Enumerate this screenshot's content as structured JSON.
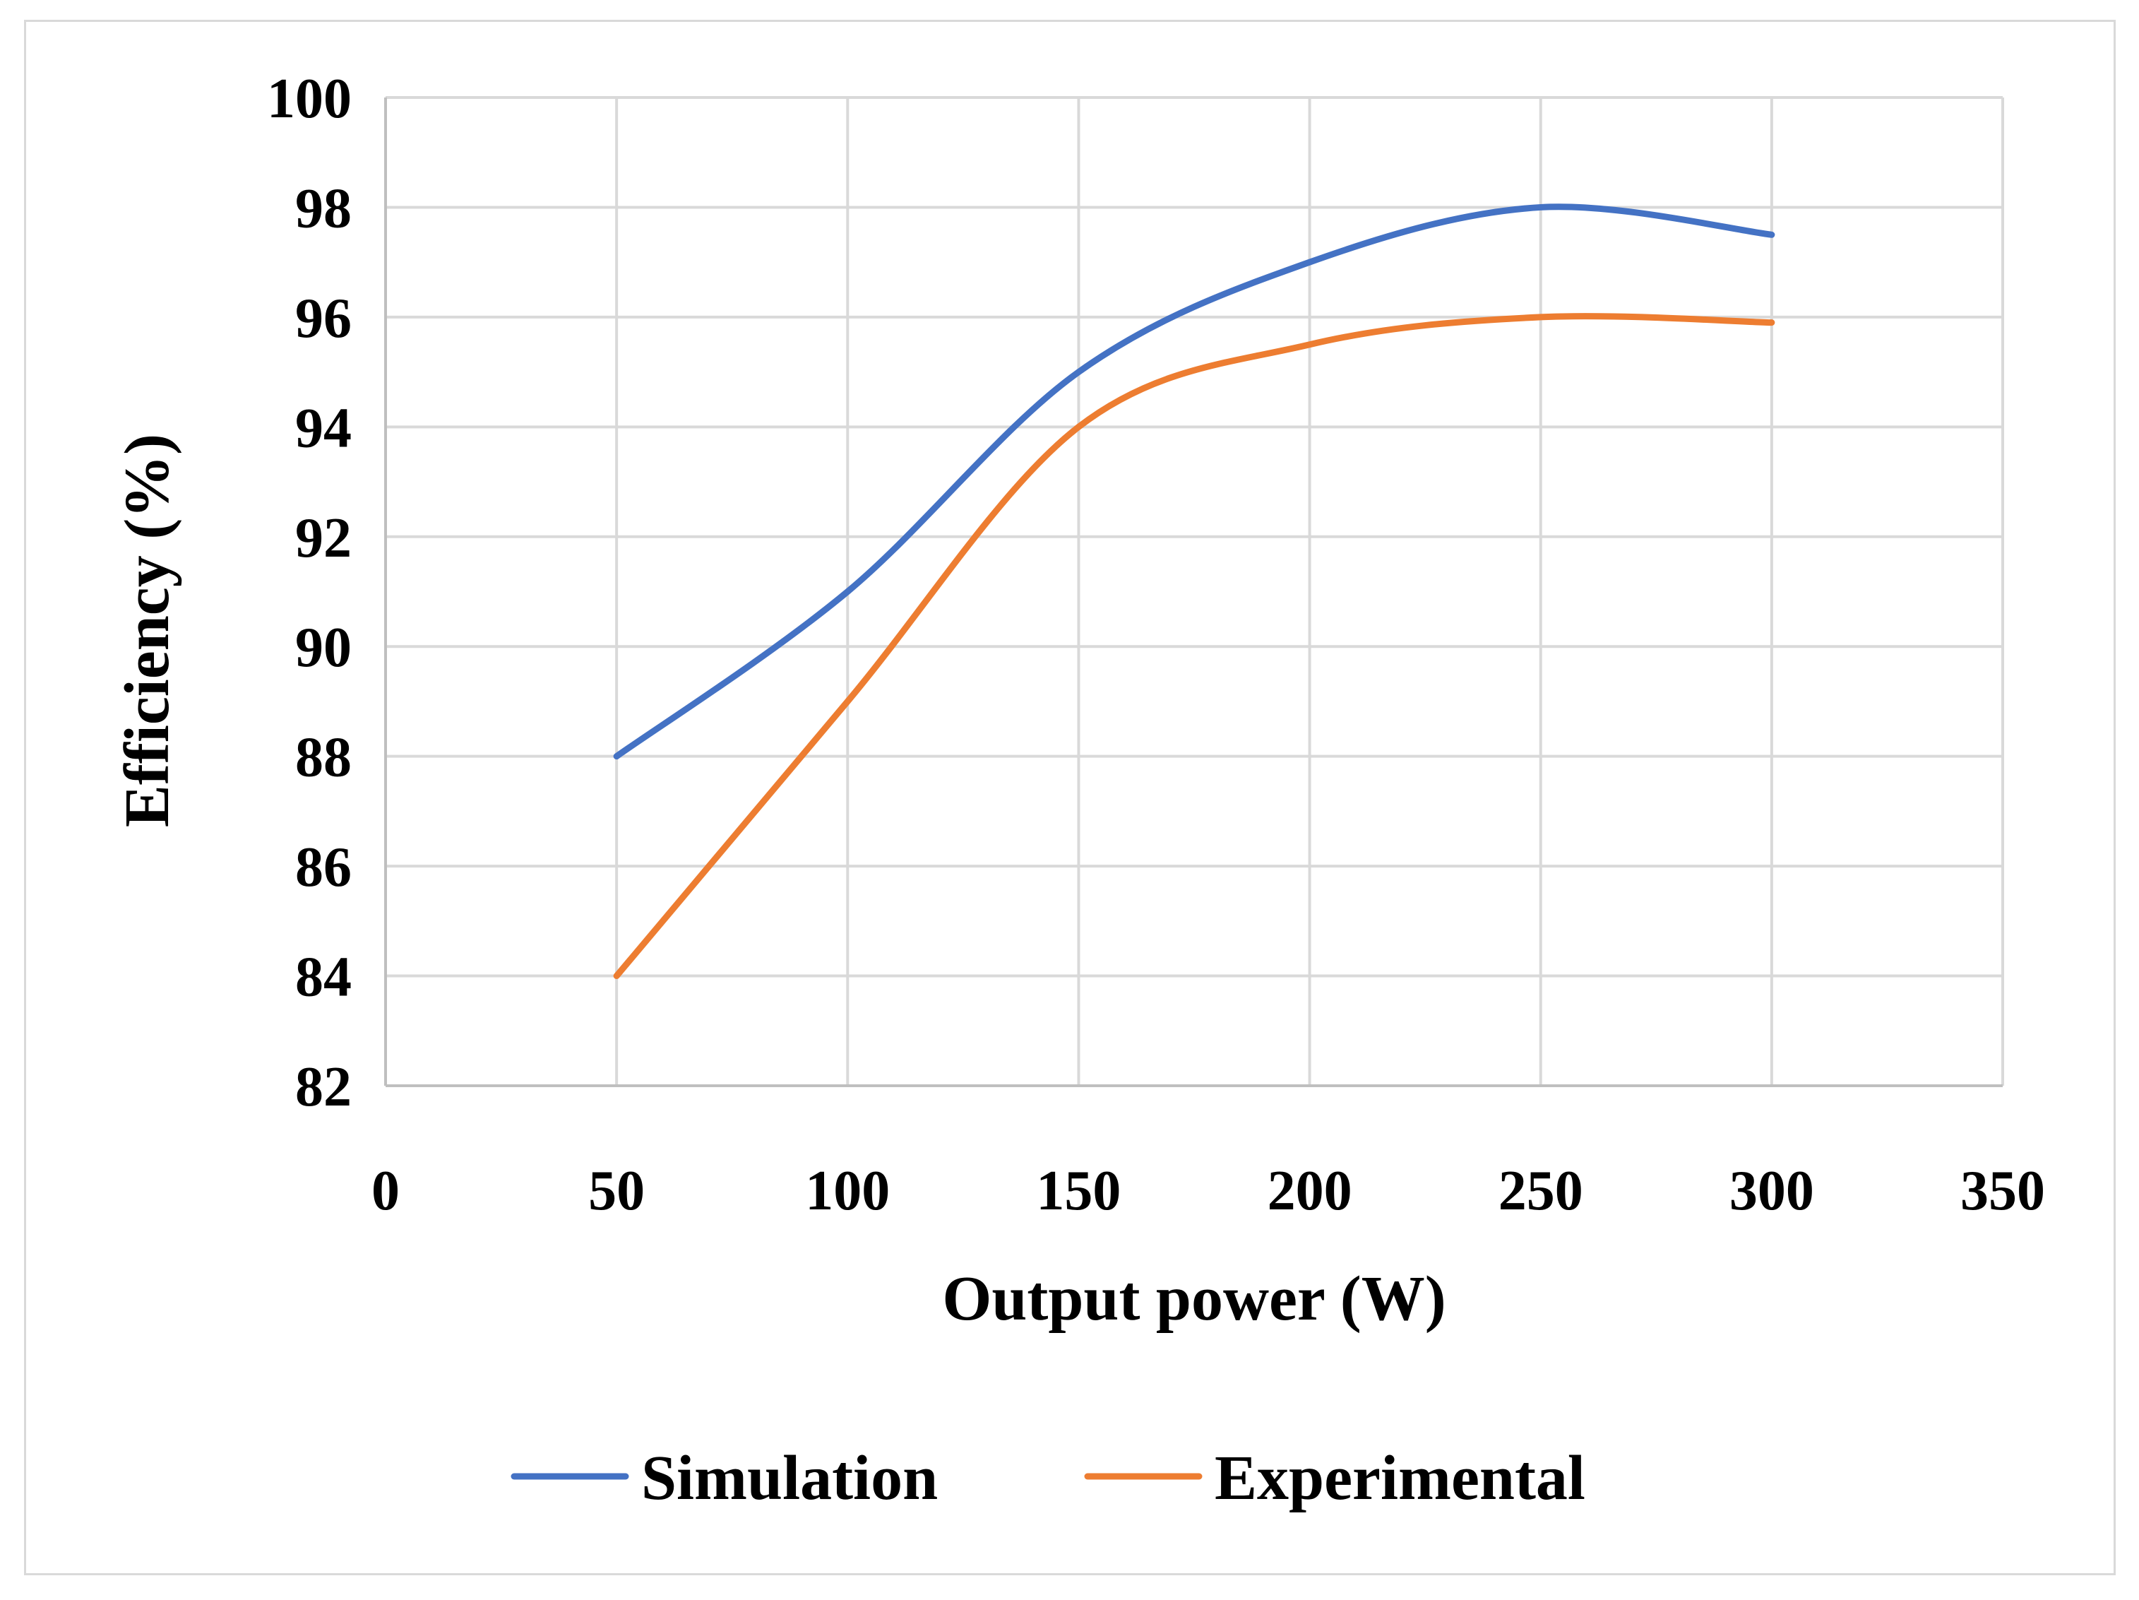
{
  "chart_data": {
    "type": "line",
    "title": "",
    "xlabel": "Output power (W)",
    "ylabel": "Efficiency (%)",
    "xlim": [
      0,
      350
    ],
    "ylim": [
      82,
      100
    ],
    "xticks": [
      0,
      50,
      100,
      150,
      200,
      250,
      300,
      350
    ],
    "yticks": [
      82,
      84,
      86,
      88,
      90,
      92,
      94,
      96,
      98,
      100
    ],
    "grid": true,
    "smooth": true,
    "legend_position": "bottom",
    "x": [
      50,
      100,
      150,
      200,
      250,
      300
    ],
    "series": [
      {
        "name": "Simulation",
        "color": "#4472c4",
        "values": [
          88,
          91,
          95,
          97,
          98,
          97.5
        ]
      },
      {
        "name": "Experimental",
        "color": "#ed7d31",
        "values": [
          84,
          89,
          94,
          95.5,
          96,
          95.9
        ]
      }
    ]
  }
}
